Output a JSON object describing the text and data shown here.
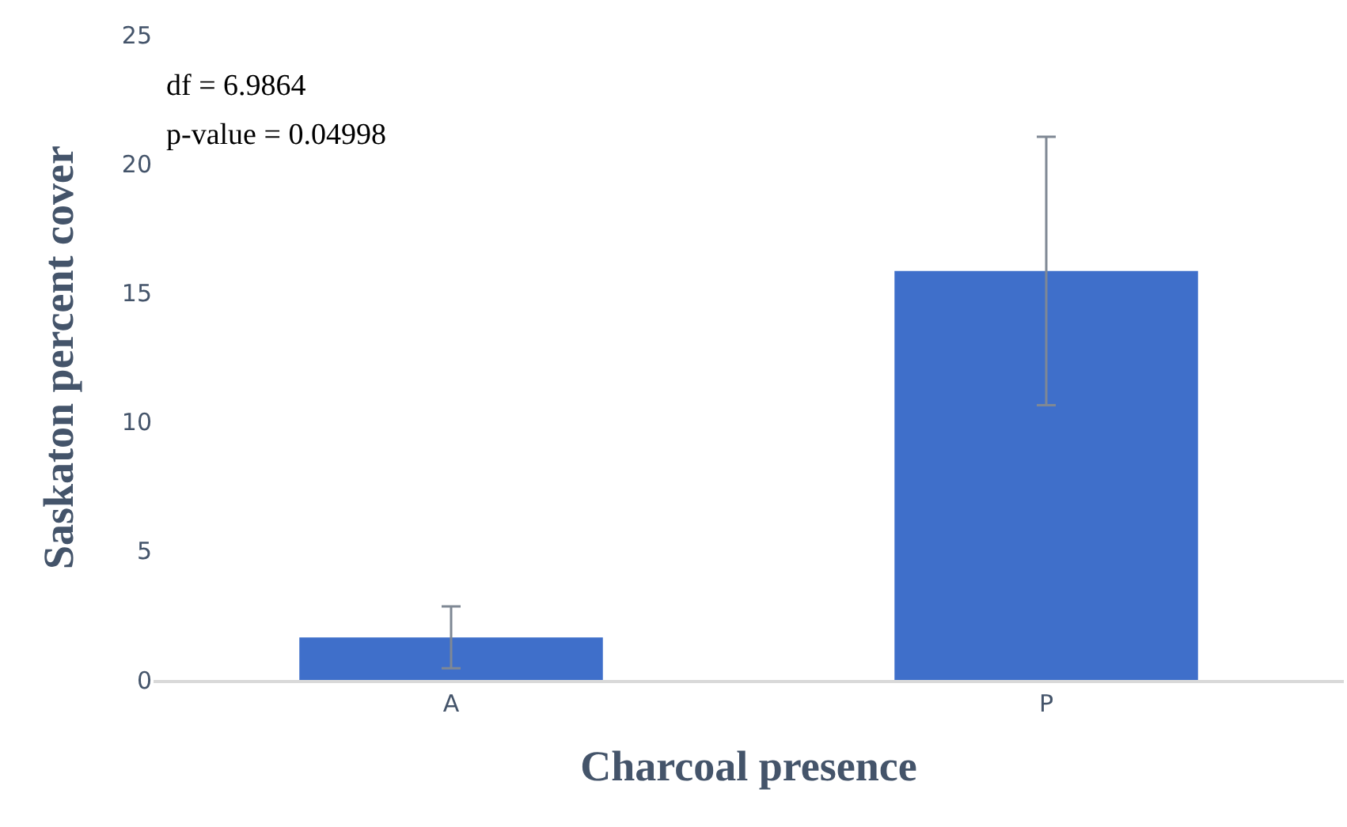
{
  "chart_data": {
    "type": "bar",
    "xlabel": "Charcoal presence",
    "ylabel": "Saskaton percent cover",
    "categories": [
      "A",
      "P"
    ],
    "values": [
      1.65,
      15.85
    ],
    "errors": [
      1.2,
      5.2
    ],
    "color": "#3f6fca",
    "ylim": [
      0,
      25
    ],
    "yticks": [
      0,
      5,
      10,
      15,
      20,
      25
    ],
    "grid": false,
    "legend": false,
    "annotations": [
      "df = 6.9864",
      "p-value = 0.04998"
    ]
  }
}
